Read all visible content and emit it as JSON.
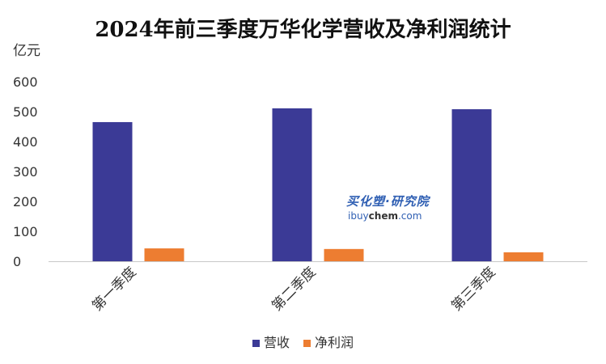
{
  "chart_data": {
    "type": "bar",
    "title": "2024年前三季度万华化学营收及净利润统计",
    "ylabel": "亿元",
    "xlabel": "",
    "ylim": [
      0,
      600
    ],
    "yticks": [
      0,
      100,
      200,
      300,
      400,
      500,
      600
    ],
    "categories": [
      "第一季度",
      "第二季度",
      "第三季度"
    ],
    "series": [
      {
        "name": "营收",
        "color": "#3b3a96",
        "values": [
          465,
          511,
          508
        ]
      },
      {
        "name": "净利润",
        "color": "#ed7d31",
        "values": [
          43,
          41,
          30
        ]
      }
    ],
    "legend_position": "bottom",
    "grid": false
  },
  "watermark": {
    "cn": "买化塑·研究院",
    "en_prefix": "ibuy",
    "en_mid": "chem",
    "en_suffix": ".com"
  }
}
